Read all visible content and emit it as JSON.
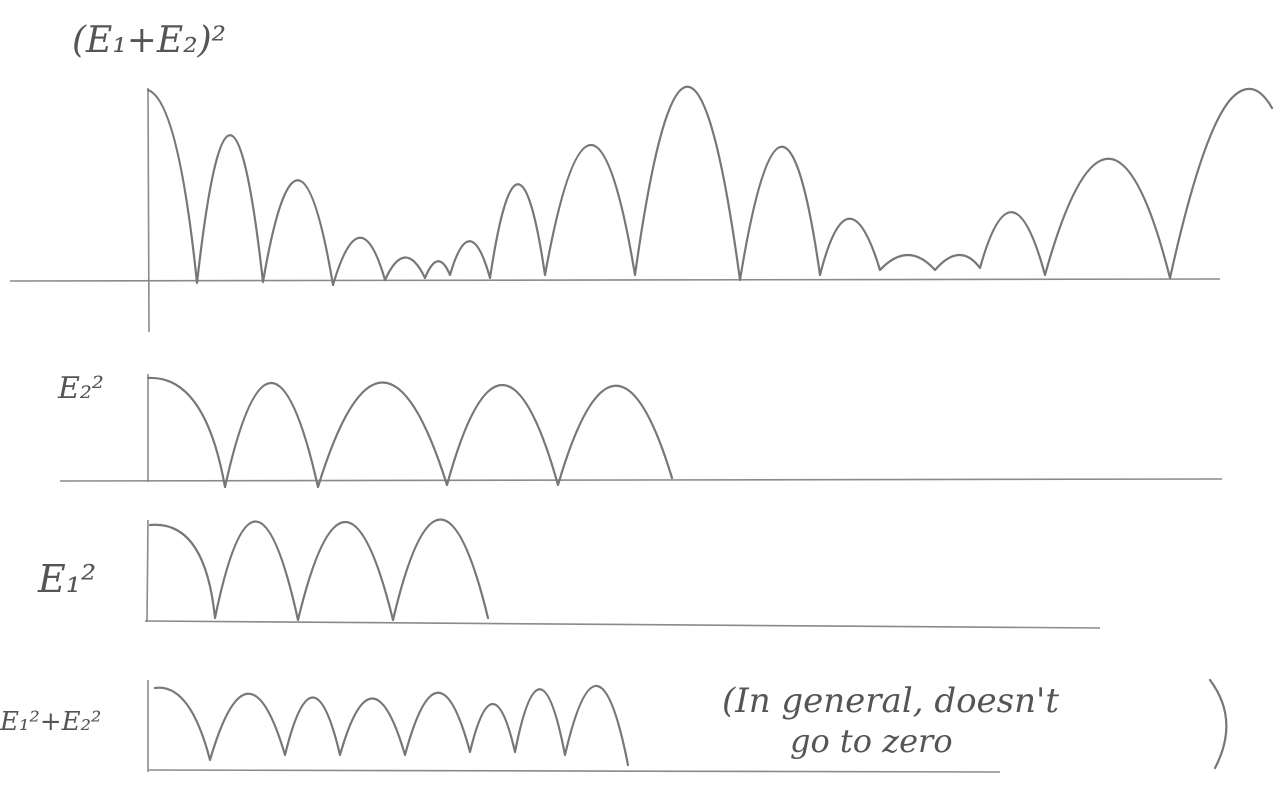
{
  "panels": [
    {
      "label": "(E₁+E₂)²"
    },
    {
      "label": "E₂²"
    },
    {
      "label": "E₁²"
    },
    {
      "label": "E₁²+E₂²"
    }
  ],
  "annotation": {
    "lines": [
      "(In general, doesn't",
      "go to zero"
    ]
  }
}
